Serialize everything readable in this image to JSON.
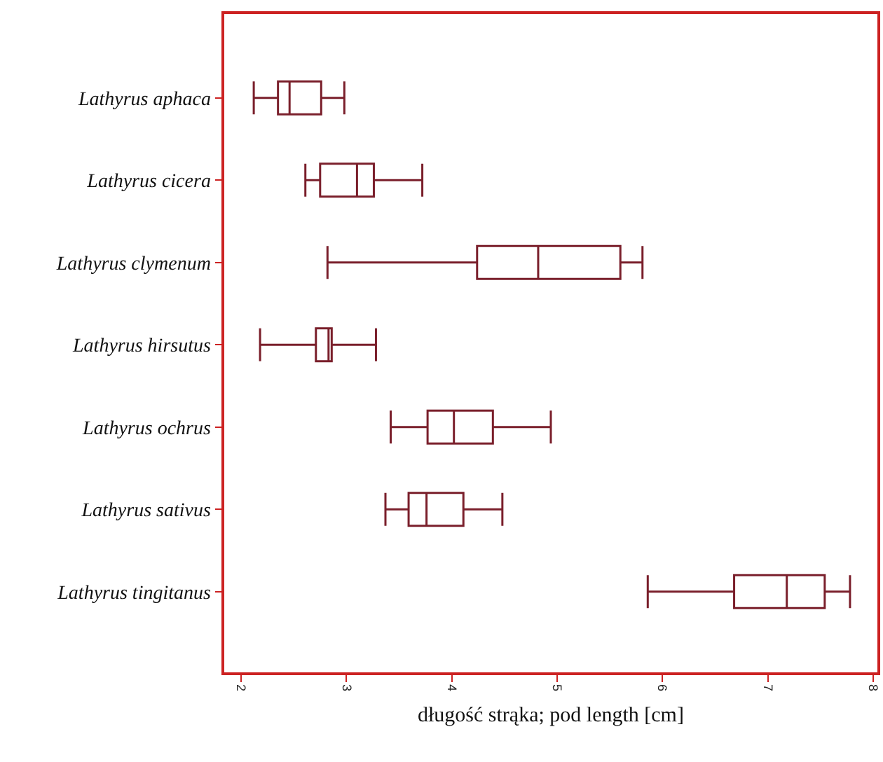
{
  "chart_data": {
    "type": "box",
    "orientation": "horizontal",
    "xlabel": "długość strąka; pod length [cm]",
    "categories": [
      "Lathyrus aphaca",
      "Lathyrus cicera",
      "Lathyrus clymenum",
      "Lathyrus hirsutus",
      "Lathyrus ochrus",
      "Lathyrus sativus",
      "Lathyrus tingitanus"
    ],
    "color": "#7a1f2b",
    "boxes": [
      {
        "low": 2.12,
        "q1": 2.35,
        "median": 2.46,
        "q3": 2.76,
        "high": 2.98
      },
      {
        "low": 2.61,
        "q1": 2.75,
        "median": 3.1,
        "q3": 3.26,
        "high": 3.72
      },
      {
        "low": 2.82,
        "q1": 4.24,
        "median": 4.82,
        "q3": 5.6,
        "high": 5.81
      },
      {
        "low": 2.18,
        "q1": 2.71,
        "median": 2.83,
        "q3": 2.86,
        "high": 3.28
      },
      {
        "low": 3.42,
        "q1": 3.77,
        "median": 4.02,
        "q3": 4.39,
        "high": 4.94
      },
      {
        "low": 3.37,
        "q1": 3.59,
        "median": 3.76,
        "q3": 4.11,
        "high": 4.48
      },
      {
        "low": 5.86,
        "q1": 6.68,
        "median": 7.18,
        "q3": 7.54,
        "high": 7.78
      }
    ],
    "xlim": [
      1.84,
      8.04
    ],
    "xticks": [
      2,
      3,
      4,
      5,
      6,
      7,
      8
    ],
    "grid": false
  }
}
